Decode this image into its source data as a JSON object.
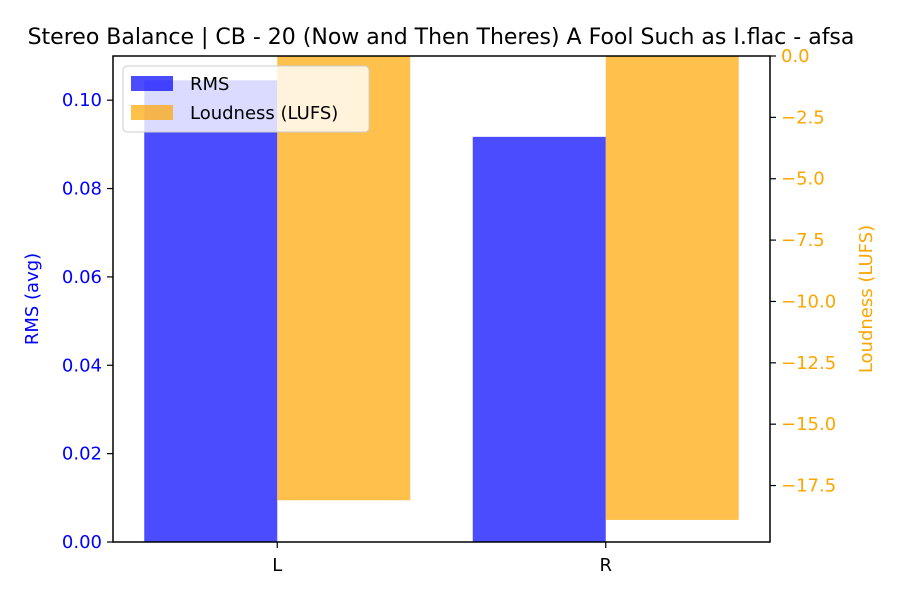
{
  "chart_data": {
    "type": "bar",
    "title": "Stereo Balance | CB - 20 (Now and Then Theres) A Fool Such as I.flac - afsa",
    "categories": [
      "L",
      "R"
    ],
    "series": [
      {
        "name": "RMS",
        "axis": "left",
        "color": "#0000ff",
        "values": [
          0.1045,
          0.0917
        ]
      },
      {
        "name": "Loudness (LUFS)",
        "axis": "right",
        "color": "#ffa500",
        "values": [
          -18.1,
          -18.9
        ]
      }
    ],
    "left_axis": {
      "label": "RMS (avg)",
      "color": "#0000ff",
      "range": [
        0.0,
        0.11
      ],
      "ticks": [
        0.0,
        0.02,
        0.04,
        0.06,
        0.08,
        0.1
      ],
      "tick_labels": [
        "0.00",
        "0.02",
        "0.04",
        "0.06",
        "0.08",
        "0.10"
      ]
    },
    "right_axis": {
      "label": "Loudness (LUFS)",
      "color": "#ffa500",
      "range": [
        -19.8,
        0.0
      ],
      "ticks": [
        0.0,
        -2.5,
        -5.0,
        -7.5,
        -10.0,
        -12.5,
        -15.0,
        -17.5
      ],
      "tick_labels": [
        "0.0",
        "−2.5",
        "−5.0",
        "−7.5",
        "−10.0",
        "−12.5",
        "−15.0",
        "−17.5"
      ]
    },
    "legend_position": "top-left",
    "grid": false
  }
}
